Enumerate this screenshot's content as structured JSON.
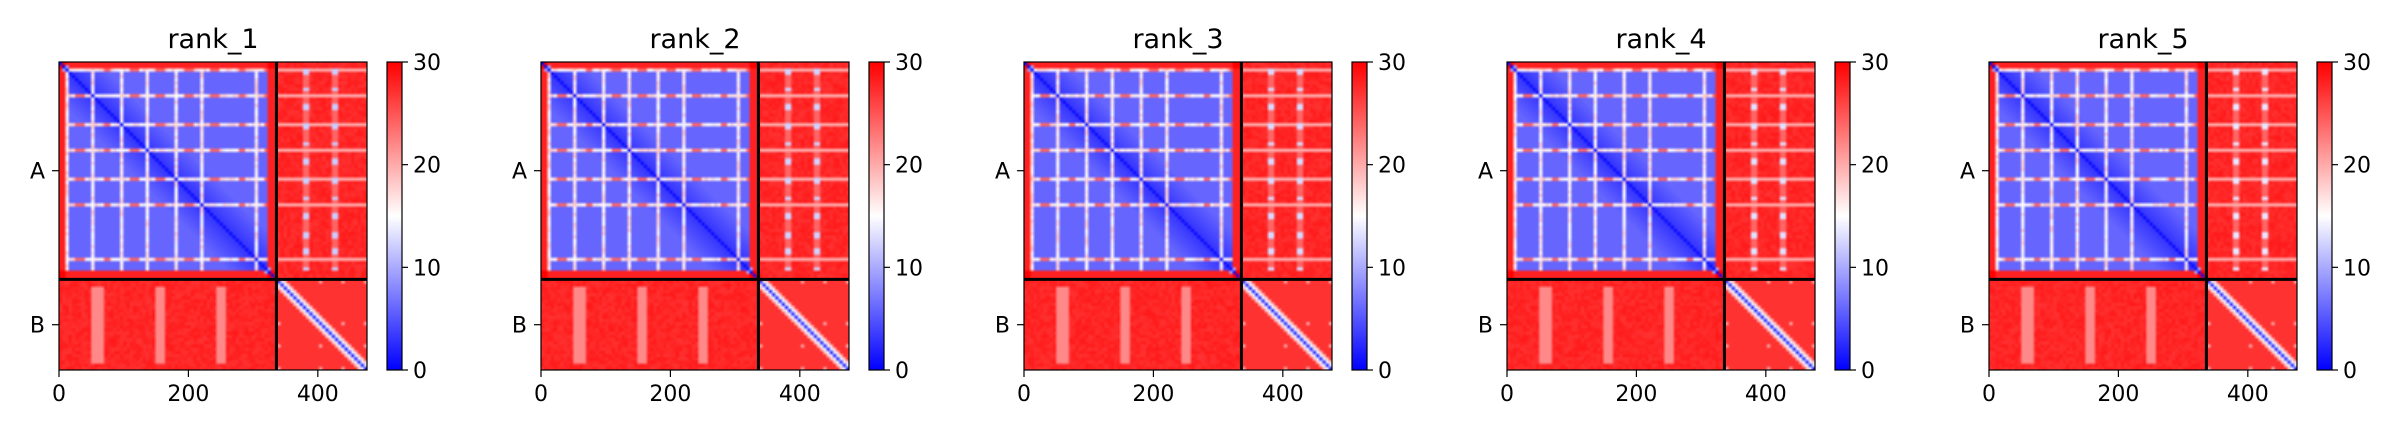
{
  "chart_data": [
    {
      "type": "heatmap",
      "title": "rank_1",
      "xticks": [
        0,
        200,
        400
      ],
      "xlim": [
        0,
        476
      ],
      "chain_boundary": 336,
      "chain_labels": [
        "A",
        "B"
      ],
      "colorbar": {
        "ticks": [
          0,
          10,
          20,
          30
        ],
        "range": [
          0,
          30
        ],
        "colormap": "bwr"
      },
      "variant": 0
    },
    {
      "type": "heatmap",
      "title": "rank_2",
      "xticks": [
        0,
        200,
        400
      ],
      "xlim": [
        0,
        476
      ],
      "chain_boundary": 336,
      "chain_labels": [
        "A",
        "B"
      ],
      "colorbar": {
        "ticks": [
          0,
          10,
          20,
          30
        ],
        "range": [
          0,
          30
        ],
        "colormap": "bwr"
      },
      "variant": 1
    },
    {
      "type": "heatmap",
      "title": "rank_3",
      "xticks": [
        0,
        200,
        400
      ],
      "xlim": [
        0,
        476
      ],
      "chain_boundary": 336,
      "chain_labels": [
        "A",
        "B"
      ],
      "colorbar": {
        "ticks": [
          0,
          10,
          20,
          30
        ],
        "range": [
          0,
          30
        ],
        "colormap": "bwr"
      },
      "variant": 2
    },
    {
      "type": "heatmap",
      "title": "rank_4",
      "xticks": [
        0,
        200,
        400
      ],
      "xlim": [
        0,
        476
      ],
      "chain_boundary": 336,
      "chain_labels": [
        "A",
        "B"
      ],
      "colorbar": {
        "ticks": [
          0,
          10,
          20,
          30
        ],
        "range": [
          0,
          30
        ],
        "colormap": "bwr"
      },
      "variant": 3
    },
    {
      "type": "heatmap",
      "title": "rank_5",
      "xticks": [
        0,
        200,
        400
      ],
      "xlim": [
        0,
        476
      ],
      "chain_boundary": 336,
      "chain_labels": [
        "A",
        "B"
      ],
      "colorbar": {
        "ticks": [
          0,
          10,
          20,
          30
        ],
        "range": [
          0,
          30
        ],
        "colormap": "bwr"
      },
      "variant": 4
    }
  ]
}
